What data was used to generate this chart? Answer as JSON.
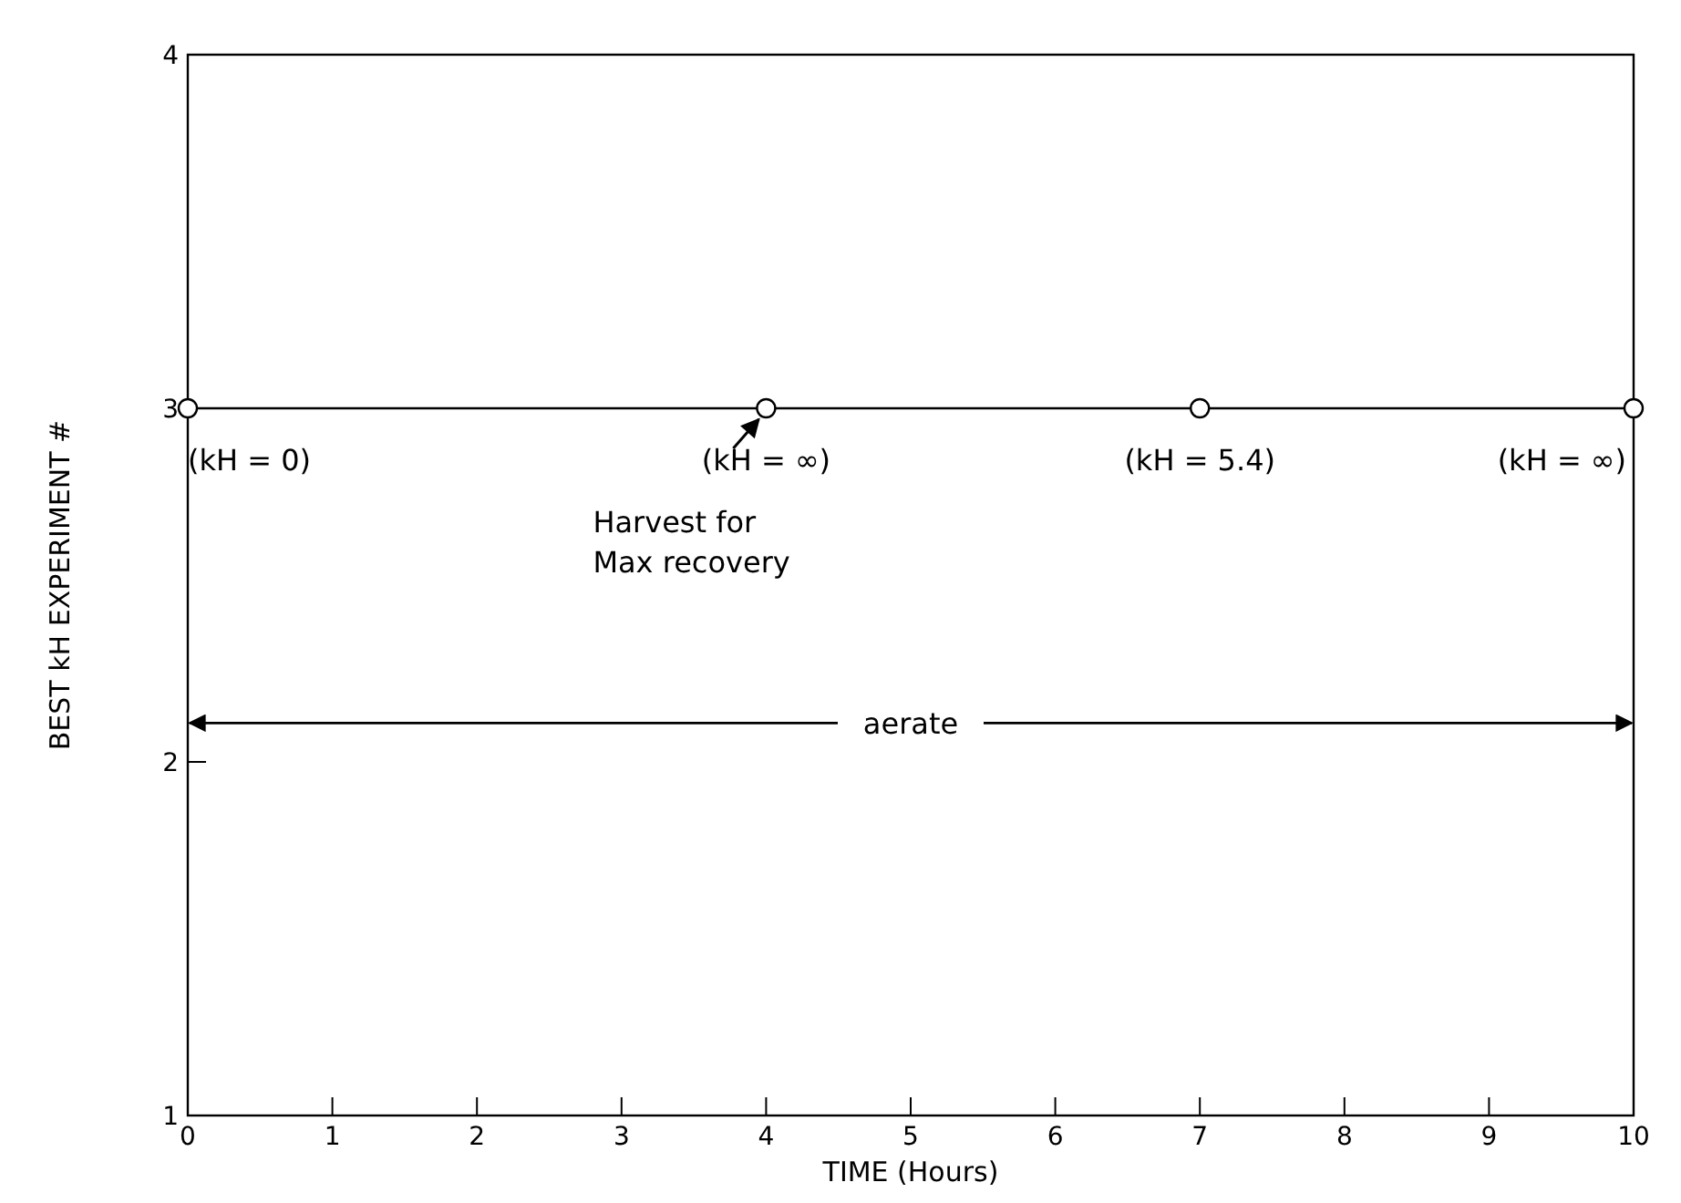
{
  "chart_data": {
    "type": "line",
    "xlabel": "TIME (Hours)",
    "ylabel": "BEST kH EXPERIMENT #",
    "x": [
      0,
      4,
      7,
      10
    ],
    "series": [
      {
        "color": "#000000",
        "values": [
          3,
          3,
          3,
          3
        ]
      }
    ],
    "xlim": [
      0,
      10
    ],
    "xticks": [
      0,
      1,
      2,
      3,
      4,
      5,
      6,
      7,
      8,
      9,
      10
    ],
    "ylim": [
      1,
      4
    ],
    "yticks": [
      1,
      2,
      3,
      4
    ],
    "marker": "circle",
    "line_style": "solid",
    "grid": false,
    "annotations": [
      {
        "text": "(kH = 0)",
        "x": 0,
        "y": 3
      },
      {
        "text": "(kH = ∞)",
        "x": 4,
        "y": 3
      },
      {
        "text": "(kH = 5.4)",
        "x": 7,
        "y": 3
      },
      {
        "text": "(kH = ∞)",
        "x": 10,
        "y": 3
      },
      "Harvest for\nMax recovery",
      "aerate"
    ]
  }
}
